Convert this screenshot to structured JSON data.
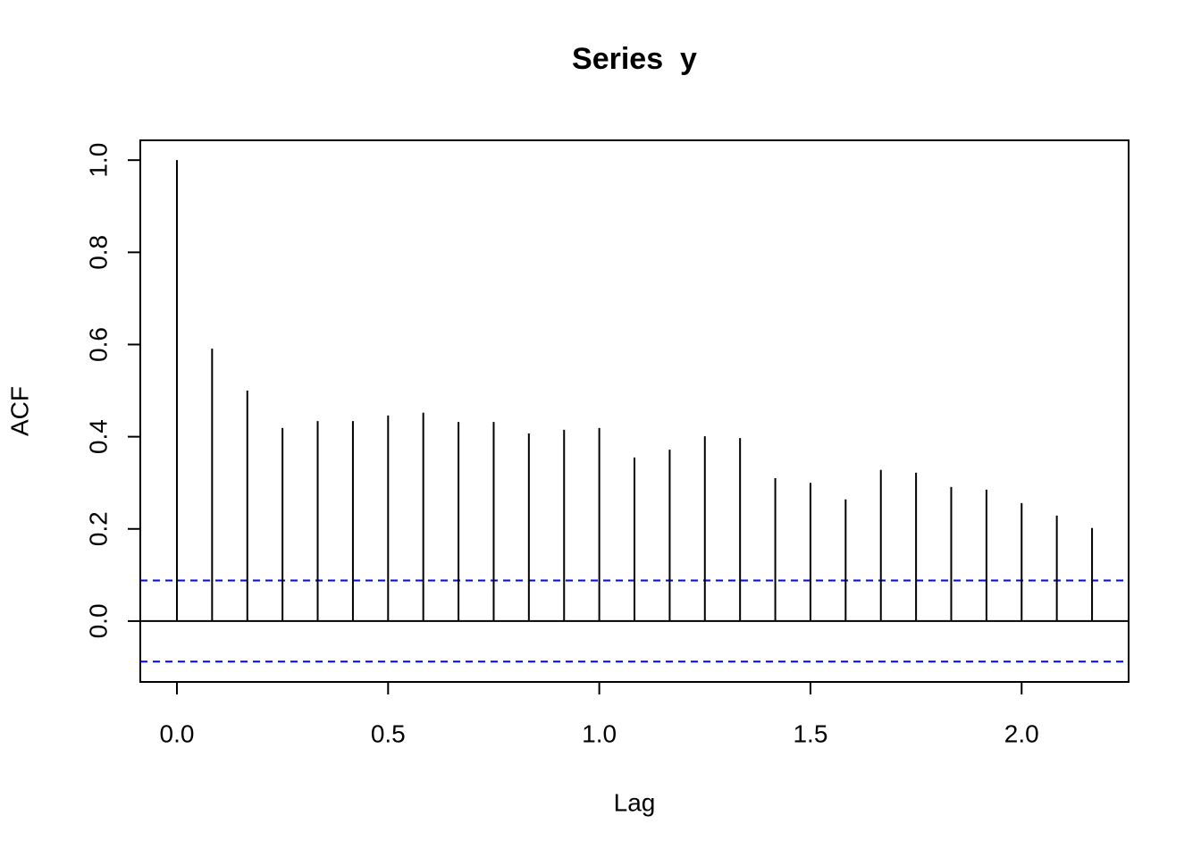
{
  "chart_data": {
    "type": "acf",
    "title": "Series  y",
    "x_label": "Lag",
    "y_label": "ACF",
    "x": [
      0,
      0.0833,
      0.1667,
      0.25,
      0.3333,
      0.4167,
      0.5,
      0.5833,
      0.6667,
      0.75,
      0.8333,
      0.9167,
      1,
      1.0833,
      1.1667,
      1.25,
      1.3333,
      1.4167,
      1.5,
      1.5833,
      1.6667,
      1.75,
      1.8333,
      1.9167,
      2,
      2.0833,
      2.1667
    ],
    "values": [
      1.0,
      0.591,
      0.5,
      0.419,
      0.434,
      0.434,
      0.446,
      0.452,
      0.432,
      0.432,
      0.407,
      0.415,
      0.419,
      0.355,
      0.372,
      0.401,
      0.397,
      0.31,
      0.3,
      0.264,
      0.328,
      0.322,
      0.291,
      0.285,
      0.256,
      0.229,
      0.202
    ],
    "color": "#000000",
    "ci": [
      0.088,
      -0.088
    ],
    "ci_color": "#0000ff",
    "xlim": [
      -0.0867,
      2.2533
    ],
    "ylim": [
      -0.132,
      1.043
    ],
    "xticks": [
      {
        "value": 0,
        "label": "0.0"
      },
      {
        "value": 0.5,
        "label": "0.5"
      },
      {
        "value": 1,
        "label": "1.0"
      },
      {
        "value": 1.5,
        "label": "1.5"
      },
      {
        "value": 2,
        "label": "2.0"
      }
    ],
    "yticks": [
      {
        "value": 0,
        "label": "0.0"
      },
      {
        "value": 0.2,
        "label": "0.2"
      },
      {
        "value": 0.4,
        "label": "0.4"
      },
      {
        "value": 0.6,
        "label": "0.6"
      },
      {
        "value": 0.8,
        "label": "0.8"
      },
      {
        "value": 1,
        "label": "1.0"
      }
    ]
  }
}
